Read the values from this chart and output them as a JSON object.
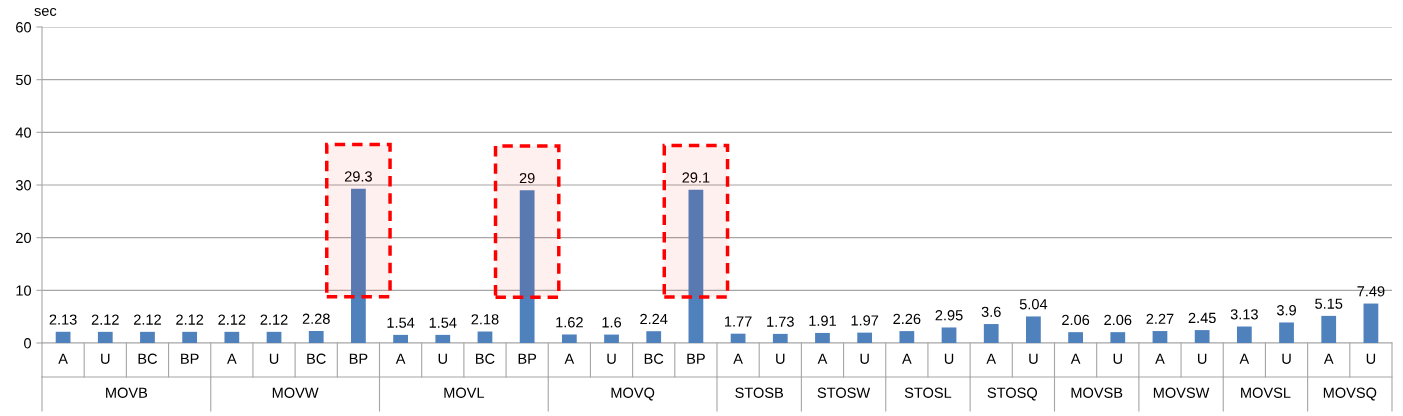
{
  "chart_data": {
    "type": "bar",
    "ylabel": "sec",
    "categories": [
      "A",
      "U",
      "BC",
      "BP",
      "A",
      "U",
      "BC",
      "BP",
      "A",
      "U",
      "BC",
      "BP",
      "A",
      "U",
      "BC",
      "BP",
      "A",
      "U",
      "A",
      "U",
      "A",
      "U",
      "A",
      "U",
      "A",
      "U",
      "A",
      "U",
      "A",
      "U",
      "A",
      "U"
    ],
    "values": [
      2.13,
      2.12,
      2.12,
      2.12,
      2.12,
      2.12,
      2.28,
      29.3,
      1.54,
      1.54,
      2.18,
      29,
      1.62,
      1.6,
      2.24,
      29.1,
      1.77,
      1.73,
      1.91,
      1.97,
      2.26,
      2.95,
      3.6,
      5.04,
      2.06,
      2.06,
      2.27,
      2.45,
      3.13,
      3.9,
      5.15,
      7.49
    ],
    "color": "#4f81bd",
    "ylim": [
      0,
      60
    ],
    "yticks": [
      0,
      10,
      20,
      30,
      40,
      50,
      60
    ],
    "grid": "y",
    "data_labels": true,
    "annotations": [
      "MOVB",
      "MOVW",
      "MOVL",
      "MOVQ",
      "STOSB",
      "STOSW",
      "STOSL",
      "STOSQ",
      "MOVSB",
      "MOVSW",
      "MOVSL",
      "MOVSQ"
    ]
  }
}
